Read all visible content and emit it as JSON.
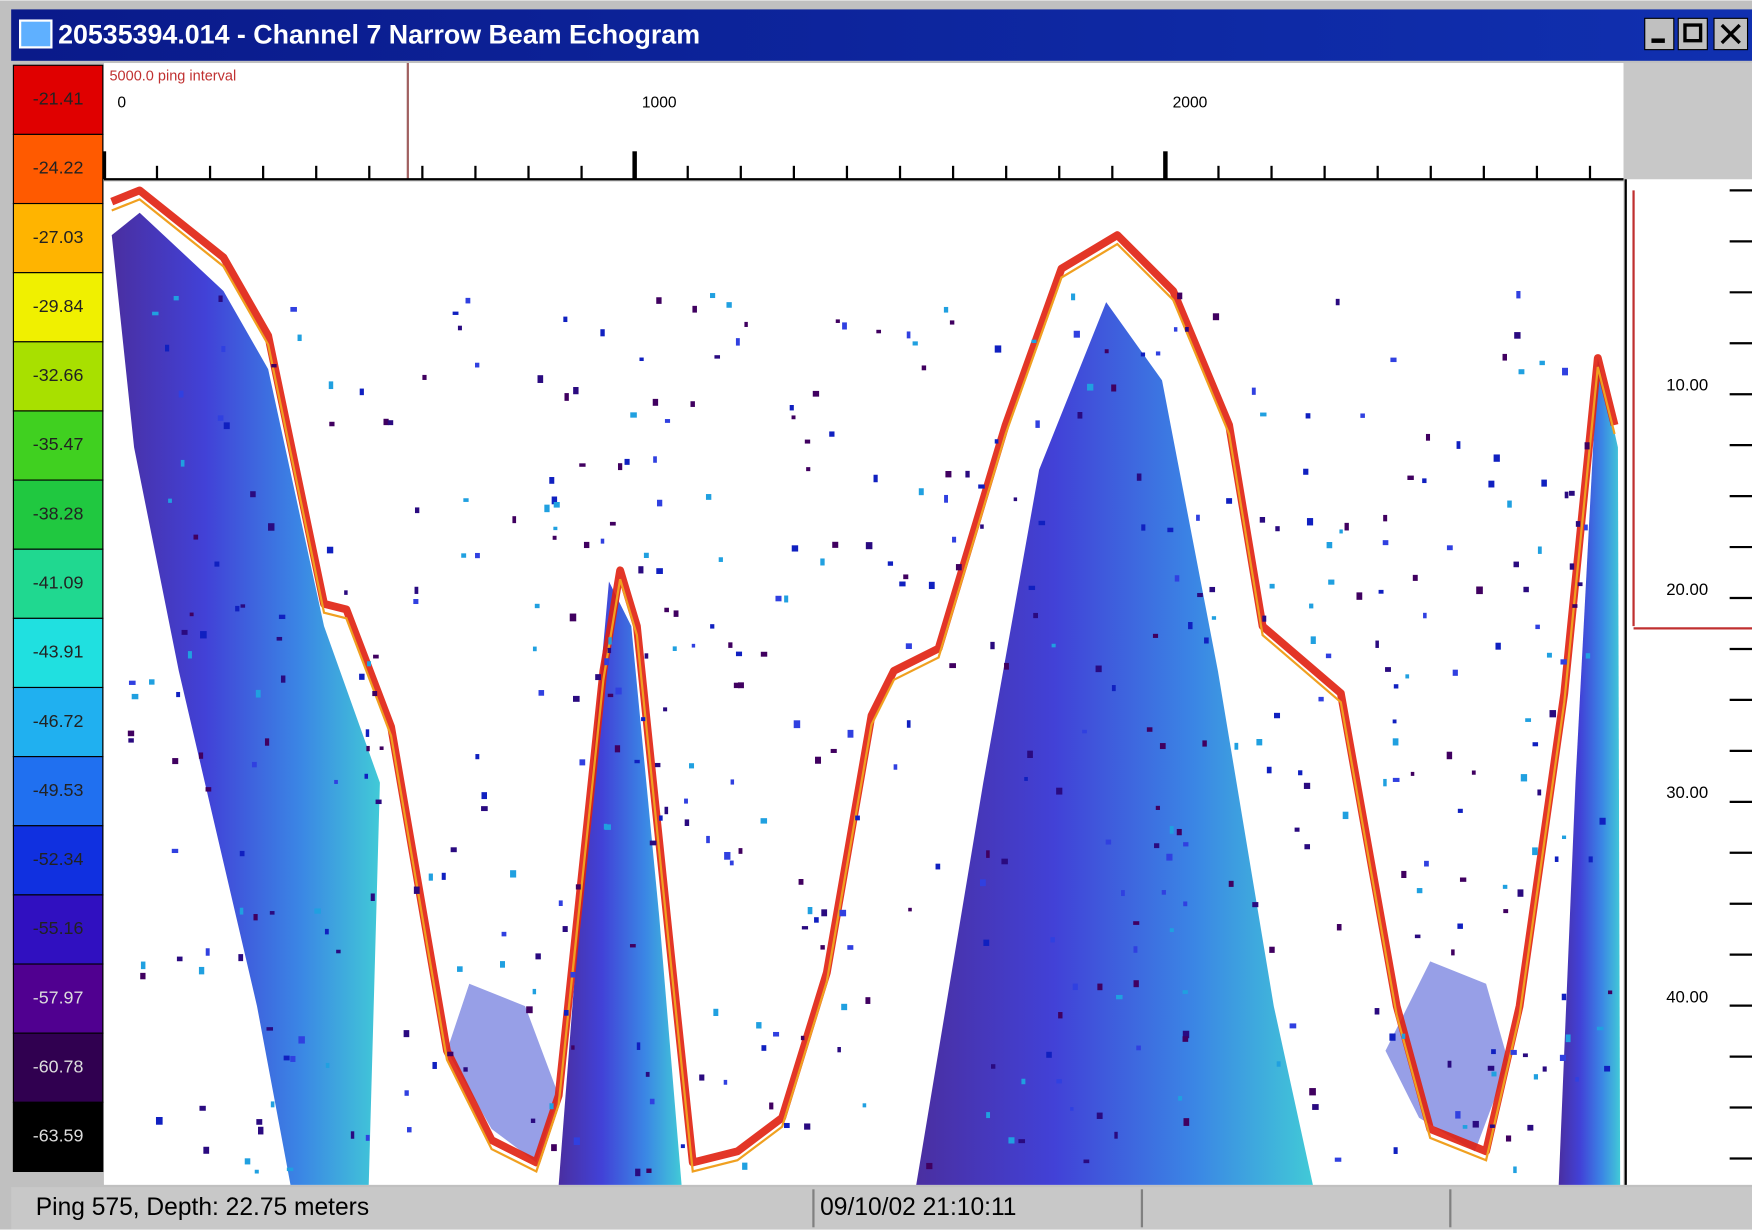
{
  "window": {
    "title": "20535394.014 - Channel 7 Narrow Beam Echogram"
  },
  "color_scale": {
    "labels": [
      "-21.41",
      "-24.22",
      "-27.03",
      "-29.84",
      "-32.66",
      "-35.47",
      "-38.28",
      "-41.09",
      "-43.91",
      "-46.72",
      "-49.53",
      "-52.34",
      "-55.16",
      "-57.97",
      "-60.78",
      "-63.59"
    ]
  },
  "top_ruler": {
    "caption": "5000.0 ping interval",
    "labels": [
      "0",
      "1000",
      "2000"
    ]
  },
  "right_axis": {
    "labels": [
      "10.00",
      "20.00",
      "30.00",
      "40.00"
    ]
  },
  "status_bar": {
    "ping_depth": "Ping 575, Depth: 22.75 meters",
    "timestamp": "09/10/02 21:10:11"
  }
}
